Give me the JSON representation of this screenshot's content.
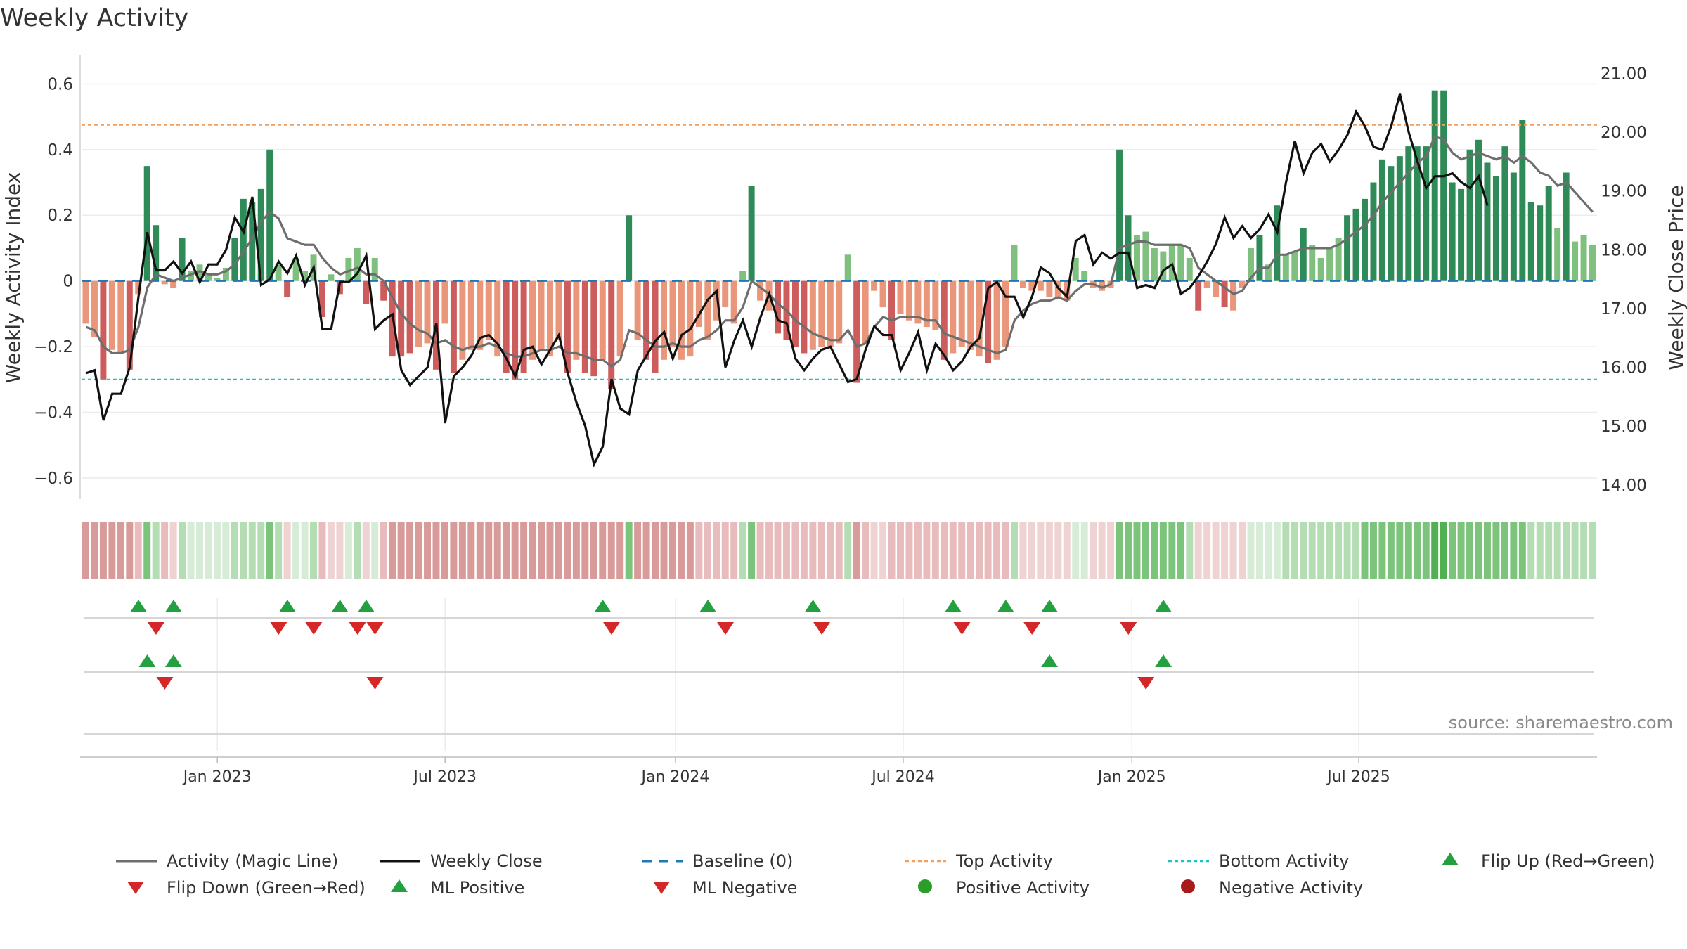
{
  "chart_title": "Weekly Activity",
  "source": "source: sharemaestro.com",
  "colors": {
    "positive_dark": "#2e8b57",
    "positive_light": "#7fc07f",
    "negative_dark": "#cd5c5c",
    "negative_light": "#e9967a",
    "magic_line": "#6e6e6e",
    "close": "#111111",
    "baseline": "#1f77b4",
    "top_line": "#f0a060",
    "bottom_line": "#20c0c8",
    "marker_up": "#23a040",
    "marker_down": "#d62728",
    "dot_pos": "#2a9d2a",
    "dot_neg": "#a61c1c"
  },
  "chart_data": {
    "type": "bar",
    "title": "Weekly Activity",
    "ylabel": "Weekly Activity Index",
    "y2label": "Weekly Close Price",
    "ylim": [
      -0.63,
      0.65
    ],
    "y2lim": [
      13.95,
      21.1
    ],
    "yticks": [
      "0.6",
      "0.4",
      "0.2",
      "0",
      "−0.2",
      "−0.4",
      "−0.6"
    ],
    "y2ticks": [
      "21.00",
      "20.00",
      "19.00",
      "18.00",
      "17.00",
      "16.00",
      "15.00",
      "14.00"
    ],
    "x_labels": [
      "Jan 2023",
      "Jul 2023",
      "Jan 2024",
      "Jul 2024",
      "Jan 2025",
      "Jul 2025"
    ],
    "top_activity": 0.475,
    "bottom_activity": -0.3,
    "baseline": 0,
    "activity": [
      -0.13,
      -0.17,
      -0.3,
      -0.21,
      -0.22,
      -0.27,
      -0.04,
      0.35,
      0.17,
      -0.01,
      -0.02,
      0.13,
      0.03,
      0.05,
      0.02,
      0.01,
      0.04,
      0.13,
      0.25,
      0.24,
      0.28,
      0.4,
      0.05,
      -0.05,
      0.07,
      0.03,
      0.08,
      -0.11,
      0.02,
      -0.04,
      0.07,
      0.1,
      -0.07,
      0.07,
      -0.06,
      -0.23,
      -0.23,
      -0.22,
      -0.2,
      -0.19,
      -0.27,
      -0.13,
      -0.28,
      -0.24,
      -0.21,
      -0.21,
      -0.18,
      -0.23,
      -0.28,
      -0.3,
      -0.28,
      -0.24,
      -0.21,
      -0.23,
      -0.18,
      -0.28,
      -0.24,
      -0.28,
      -0.29,
      -0.24,
      -0.33,
      -0.23,
      0.2,
      -0.18,
      -0.24,
      -0.28,
      -0.24,
      -0.2,
      -0.24,
      -0.23,
      -0.14,
      -0.18,
      -0.12,
      -0.08,
      -0.13,
      0.03,
      0.29,
      -0.06,
      -0.09,
      -0.16,
      -0.18,
      -0.2,
      -0.22,
      -0.21,
      -0.2,
      -0.2,
      -0.19,
      0.08,
      -0.31,
      -0.19,
      -0.03,
      -0.08,
      -0.18,
      -0.1,
      -0.12,
      -0.13,
      -0.14,
      -0.15,
      -0.24,
      -0.22,
      -0.2,
      -0.21,
      -0.23,
      -0.25,
      -0.24,
      -0.2,
      0.11,
      -0.02,
      -0.03,
      -0.03,
      -0.05,
      -0.05,
      -0.06,
      0.07,
      0.03,
      -0.02,
      -0.03,
      -0.02,
      0.4,
      0.2,
      0.14,
      0.15,
      0.1,
      0.09,
      0.11,
      0.11,
      0.07,
      -0.09,
      -0.02,
      -0.05,
      -0.08,
      -0.09,
      -0.02,
      0.1,
      0.14,
      0.05,
      0.23,
      0.08,
      0.09,
      0.16,
      0.11,
      0.07,
      0.1,
      0.13,
      0.2,
      0.22,
      0.25,
      0.3,
      0.37,
      0.35,
      0.38,
      0.41,
      0.41,
      0.41,
      0.58,
      0.58,
      0.3,
      0.28,
      0.4,
      0.43,
      0.36,
      0.32,
      0.41,
      0.33,
      0.49,
      0.24,
      0.23,
      0.29,
      0.16,
      0.33,
      0.12,
      0.14,
      0.11
    ],
    "magic_line": [
      -0.14,
      -0.15,
      -0.2,
      -0.22,
      -0.22,
      -0.21,
      -0.14,
      -0.02,
      0.02,
      0.01,
      0.0,
      0.01,
      0.02,
      0.03,
      0.02,
      0.02,
      0.03,
      0.05,
      0.09,
      0.13,
      0.18,
      0.21,
      0.19,
      0.13,
      0.12,
      0.11,
      0.11,
      0.07,
      0.04,
      0.02,
      0.03,
      0.04,
      0.02,
      0.02,
      0.0,
      -0.05,
      -0.1,
      -0.13,
      -0.15,
      -0.16,
      -0.19,
      -0.18,
      -0.2,
      -0.21,
      -0.2,
      -0.2,
      -0.19,
      -0.2,
      -0.22,
      -0.23,
      -0.23,
      -0.22,
      -0.21,
      -0.21,
      -0.2,
      -0.22,
      -0.22,
      -0.23,
      -0.24,
      -0.24,
      -0.26,
      -0.24,
      -0.15,
      -0.16,
      -0.18,
      -0.2,
      -0.2,
      -0.19,
      -0.2,
      -0.2,
      -0.18,
      -0.17,
      -0.15,
      -0.12,
      -0.12,
      -0.08,
      0.0,
      -0.02,
      -0.04,
      -0.07,
      -0.09,
      -0.12,
      -0.14,
      -0.16,
      -0.17,
      -0.18,
      -0.18,
      -0.15,
      -0.2,
      -0.19,
      -0.14,
      -0.11,
      -0.12,
      -0.11,
      -0.11,
      -0.11,
      -0.12,
      -0.12,
      -0.16,
      -0.17,
      -0.18,
      -0.19,
      -0.2,
      -0.21,
      -0.22,
      -0.21,
      -0.12,
      -0.09,
      -0.07,
      -0.06,
      -0.06,
      -0.05,
      -0.06,
      -0.03,
      -0.01,
      -0.01,
      -0.02,
      -0.01,
      0.1,
      0.11,
      0.12,
      0.12,
      0.11,
      0.11,
      0.11,
      0.11,
      0.1,
      0.04,
      0.02,
      0.0,
      -0.02,
      -0.04,
      -0.03,
      0.01,
      0.04,
      0.04,
      0.08,
      0.08,
      0.09,
      0.1,
      0.1,
      0.1,
      0.1,
      0.11,
      0.13,
      0.15,
      0.17,
      0.2,
      0.24,
      0.27,
      0.3,
      0.33,
      0.36,
      0.38,
      0.44,
      0.43,
      0.39,
      0.37,
      0.38,
      0.39,
      0.38,
      0.37,
      0.38,
      0.36,
      0.38,
      0.36,
      0.33,
      0.32,
      0.29,
      0.3,
      0.27,
      0.24,
      0.21
    ],
    "weekly_close": [
      15.9,
      15.95,
      15.1,
      15.55,
      15.55,
      16.0,
      17.2,
      18.3,
      17.65,
      17.65,
      17.8,
      17.6,
      17.8,
      17.45,
      17.75,
      17.75,
      18.0,
      18.55,
      18.3,
      18.9,
      17.4,
      17.5,
      17.8,
      17.6,
      17.9,
      17.4,
      17.7,
      16.65,
      16.65,
      17.45,
      17.45,
      17.6,
      17.9,
      16.65,
      16.8,
      16.9,
      15.95,
      15.7,
      15.85,
      16.0,
      16.75,
      15.05,
      15.85,
      16.0,
      16.2,
      16.5,
      16.55,
      16.4,
      16.15,
      15.85,
      16.3,
      16.35,
      16.05,
      16.3,
      16.55,
      15.9,
      15.4,
      15.0,
      14.35,
      14.65,
      15.8,
      15.3,
      15.2,
      15.95,
      16.2,
      16.45,
      16.6,
      16.15,
      16.55,
      16.65,
      16.9,
      17.15,
      17.3,
      16.0,
      16.45,
      16.8,
      16.35,
      16.85,
      17.25,
      16.8,
      16.75,
      16.15,
      15.95,
      16.15,
      16.3,
      16.35,
      16.05,
      15.75,
      15.8,
      16.3,
      16.7,
      16.55,
      16.55,
      15.95,
      16.25,
      16.6,
      15.95,
      16.4,
      16.2,
      15.95,
      16.1,
      16.35,
      16.5,
      17.35,
      17.45,
      17.2,
      17.2,
      16.85,
      17.2,
      17.7,
      17.6,
      17.35,
      17.2,
      18.15,
      18.25,
      17.75,
      17.95,
      17.85,
      17.95,
      17.95,
      17.35,
      17.4,
      17.35,
      17.65,
      17.75,
      17.25,
      17.35,
      17.55,
      17.8,
      18.1,
      18.55,
      18.2,
      18.4,
      18.2,
      18.35,
      18.6,
      18.3,
      19.15,
      19.85,
      19.3,
      19.65,
      19.8,
      19.5,
      19.7,
      19.95,
      20.35,
      20.1,
      19.75,
      19.7,
      20.1,
      20.65,
      20.0,
      19.5,
      19.05,
      19.25,
      19.25,
      19.3,
      19.15,
      19.05,
      19.25,
      18.75
    ],
    "strip": [
      -3,
      -3,
      -3,
      -3,
      -3,
      -3,
      -2,
      3,
      2,
      -2,
      -1,
      2,
      1,
      1,
      1,
      1,
      1,
      2,
      2,
      2,
      2,
      3,
      2,
      -1,
      1,
      1,
      2,
      -2,
      -1,
      -1,
      1,
      2,
      -1,
      1,
      -2,
      -3,
      -3,
      -3,
      -3,
      -3,
      -3,
      -3,
      -3,
      -3,
      -3,
      -3,
      -3,
      -3,
      -3,
      -3,
      -3,
      -3,
      -3,
      -3,
      -3,
      -3,
      -3,
      -3,
      -3,
      -3,
      -3,
      -3,
      3,
      -3,
      -3,
      -3,
      -3,
      -3,
      -3,
      -3,
      -2,
      -2,
      -2,
      -2,
      -2,
      2,
      3,
      -2,
      -2,
      -2,
      -2,
      -2,
      -2,
      -2,
      -2,
      -2,
      -2,
      2,
      -3,
      -2,
      -1,
      -1,
      -2,
      -2,
      -2,
      -2,
      -2,
      -2,
      -2,
      -2,
      -2,
      -2,
      -2,
      -2,
      -2,
      -2,
      2,
      -1,
      -1,
      -1,
      -1,
      -1,
      -1,
      1,
      1,
      -1,
      -1,
      -1,
      3,
      3,
      3,
      3,
      3,
      3,
      3,
      3,
      2,
      -1,
      -1,
      -1,
      -1,
      -1,
      -1,
      1,
      1,
      1,
      1,
      2,
      2,
      2,
      2,
      2,
      2,
      2,
      2,
      2,
      3,
      3,
      3,
      3,
      3,
      3,
      3,
      3,
      4,
      4,
      3,
      3,
      3,
      3,
      3,
      3,
      3,
      3,
      3,
      2,
      2,
      2,
      2,
      2,
      2,
      2,
      2
    ],
    "flip_up_weeks": [
      6,
      10,
      23,
      29,
      32,
      59,
      71,
      83,
      99,
      105,
      110,
      123
    ],
    "flip_down_weeks": [
      8,
      22,
      26,
      31,
      33,
      60,
      73,
      84,
      100,
      108,
      119
    ],
    "ml_positive_weeks": [
      7,
      10,
      110,
      123
    ],
    "ml_negative_weeks": [
      9,
      33,
      121
    ],
    "date_label_weeks": [
      15.0,
      41.0,
      67.3,
      93.3,
      119.4,
      145.3
    ]
  },
  "legend": [
    {
      "key": "magic",
      "label": "Activity (Magic Line)"
    },
    {
      "key": "close",
      "label": "Weekly Close"
    },
    {
      "key": "baseline",
      "label": "Baseline (0)"
    },
    {
      "key": "top",
      "label": "Top Activity"
    },
    {
      "key": "bottom",
      "label": "Bottom Activity"
    },
    {
      "key": "flipup",
      "label": "Flip Up (Red→Green)"
    },
    {
      "key": "flipdown",
      "label": "Flip Down (Green→Red)"
    },
    {
      "key": "mlpos",
      "label": "ML Positive"
    },
    {
      "key": "mlneg",
      "label": "ML Negative"
    },
    {
      "key": "posdot",
      "label": "Positive Activity"
    },
    {
      "key": "negdot",
      "label": "Negative Activity"
    }
  ]
}
